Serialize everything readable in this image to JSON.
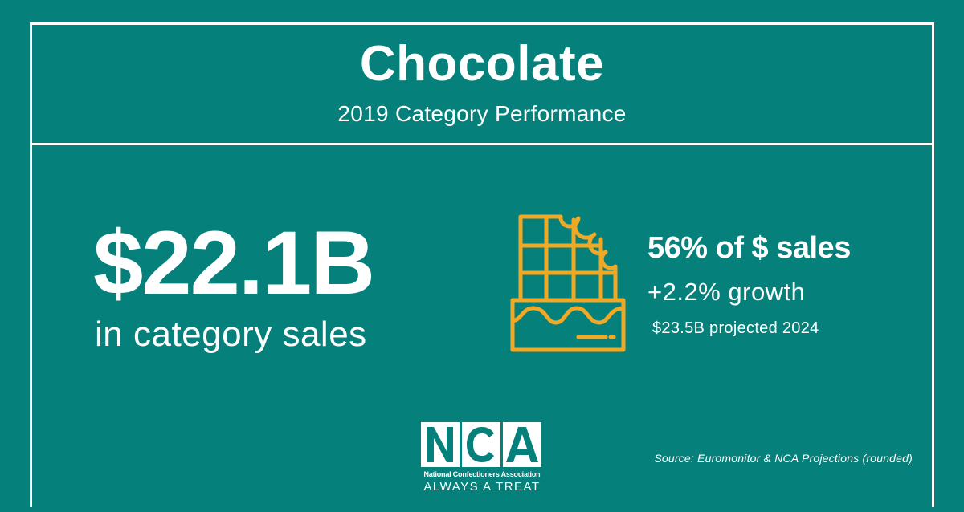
{
  "header": {
    "title": "Chocolate",
    "subtitle": "2019 Category Performance"
  },
  "headline_stat": {
    "value": "$22.1B",
    "caption": "in category sales"
  },
  "icon": {
    "name": "chocolate-bar-icon",
    "color": "#f0a825"
  },
  "stats": {
    "share": "56% of $ sales",
    "growth": "+2.2% growth",
    "projection": "$23.5B projected 2024"
  },
  "logo": {
    "letters": "NCA",
    "name": "National Confectioners Association",
    "tagline": "ALWAYS A TREAT"
  },
  "source": "Source: Euromonitor & NCA Projections (rounded)",
  "colors": {
    "background": "#06807a",
    "text": "#ffffff",
    "accent": "#f0a825"
  }
}
